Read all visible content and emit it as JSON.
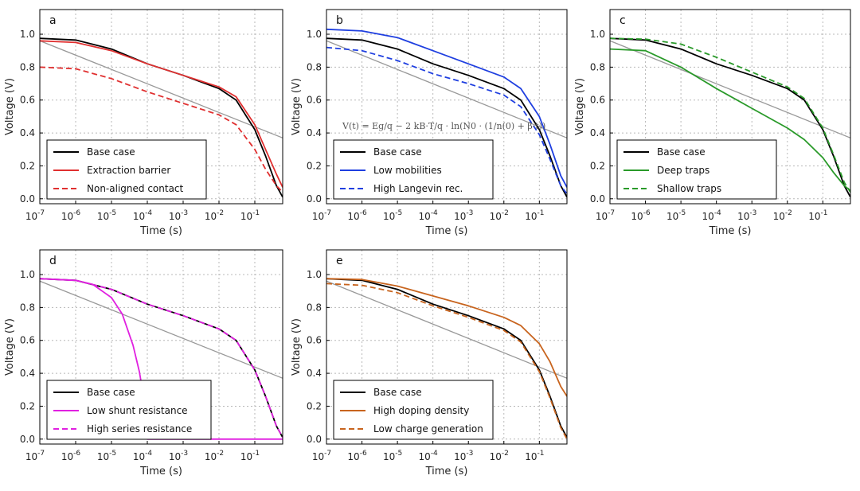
{
  "chart_data": [
    {
      "panel": "a",
      "type": "line",
      "xlabel": "Time (s)",
      "ylabel": "Voltage (V)",
      "xscale": "log",
      "xlim": [
        1e-07,
        0.6
      ],
      "ylim": [
        -0.03,
        1.15
      ],
      "xticks": [
        "10-7",
        "10-6",
        "10-5",
        "10-4",
        "10-3",
        "10-2",
        "10-1"
      ],
      "yticks": [
        "0.0",
        "0.2",
        "0.4",
        "0.6",
        "0.8",
        "1.0"
      ],
      "grid": true,
      "legend_position": "lower-left",
      "reference_line": {
        "x": [
          1e-07,
          0.6
        ],
        "y": [
          0.96,
          0.37
        ],
        "color": "#999999"
      },
      "series": [
        {
          "name": "Base case",
          "color": "#000000",
          "dash": "solid",
          "x": [
            1e-07,
            1e-06,
            1e-05,
            0.0001,
            0.001,
            0.01,
            0.03,
            0.1,
            0.2,
            0.4,
            0.6
          ],
          "y": [
            0.975,
            0.965,
            0.91,
            0.82,
            0.75,
            0.67,
            0.6,
            0.42,
            0.26,
            0.08,
            0.01
          ]
        },
        {
          "name": "Extraction barrier",
          "color": "#e03030",
          "dash": "solid",
          "x": [
            1e-07,
            1e-06,
            1e-05,
            0.0001,
            0.001,
            0.01,
            0.03,
            0.1,
            0.2,
            0.4,
            0.6
          ],
          "y": [
            0.96,
            0.95,
            0.9,
            0.82,
            0.75,
            0.68,
            0.62,
            0.45,
            0.3,
            0.15,
            0.07
          ]
        },
        {
          "name": "Non-aligned contact",
          "color": "#e03030",
          "dash": "dashed",
          "x": [
            1e-07,
            1e-06,
            1e-05,
            0.0001,
            0.001,
            0.01,
            0.03,
            0.1,
            0.2,
            0.4,
            0.6
          ],
          "y": [
            0.8,
            0.79,
            0.73,
            0.65,
            0.58,
            0.51,
            0.45,
            0.3,
            0.18,
            0.08,
            0.04
          ]
        }
      ]
    },
    {
      "panel": "b",
      "type": "line",
      "xlabel": "Time (s)",
      "ylabel": "Voltage (V)",
      "xscale": "log",
      "xlim": [
        1e-07,
        0.6
      ],
      "ylim": [
        -0.03,
        1.15
      ],
      "xticks": [
        "10-7",
        "10-6",
        "10-5",
        "10-4",
        "10-3",
        "10-2",
        "10-1"
      ],
      "yticks": [
        "0.0",
        "0.2",
        "0.4",
        "0.6",
        "0.8",
        "1.0"
      ],
      "grid": true,
      "legend_position": "lower-left",
      "annotation": "V(t) = Eg/q − 2 kB·T/q · ln(N0 · (1/n(0) + β·t))",
      "reference_line": {
        "x": [
          1e-07,
          0.6
        ],
        "y": [
          0.96,
          0.37
        ],
        "color": "#999999"
      },
      "series": [
        {
          "name": "Base case",
          "color": "#000000",
          "dash": "solid",
          "x": [
            1e-07,
            1e-06,
            1e-05,
            0.0001,
            0.001,
            0.01,
            0.03,
            0.1,
            0.2,
            0.4,
            0.6
          ],
          "y": [
            0.975,
            0.965,
            0.91,
            0.82,
            0.75,
            0.67,
            0.6,
            0.42,
            0.26,
            0.08,
            0.01
          ]
        },
        {
          "name": "Low mobilities",
          "color": "#1f3fe0",
          "dash": "solid",
          "x": [
            1e-07,
            1e-06,
            1e-05,
            0.0001,
            0.001,
            0.01,
            0.03,
            0.1,
            0.2,
            0.4,
            0.6
          ],
          "y": [
            1.03,
            1.02,
            0.98,
            0.9,
            0.82,
            0.74,
            0.67,
            0.5,
            0.33,
            0.14,
            0.07
          ]
        },
        {
          "name": "High Langevin rec.",
          "color": "#1f3fe0",
          "dash": "dashed",
          "x": [
            1e-07,
            1e-06,
            1e-05,
            0.0001,
            0.001,
            0.01,
            0.03,
            0.1,
            0.2,
            0.4,
            0.6
          ],
          "y": [
            0.92,
            0.9,
            0.84,
            0.76,
            0.7,
            0.63,
            0.56,
            0.39,
            0.24,
            0.08,
            0.03
          ]
        }
      ]
    },
    {
      "panel": "c",
      "type": "line",
      "xlabel": "Time (s)",
      "ylabel": "Voltage (V)",
      "xscale": "log",
      "xlim": [
        1e-07,
        0.6
      ],
      "ylim": [
        -0.03,
        1.15
      ],
      "xticks": [
        "10-7",
        "10-6",
        "10-5",
        "10-4",
        "10-3",
        "10-2",
        "10-1"
      ],
      "yticks": [
        "0.0",
        "0.2",
        "0.4",
        "0.6",
        "0.8",
        "1.0"
      ],
      "grid": true,
      "legend_position": "lower-left",
      "reference_line": {
        "x": [
          1e-07,
          0.6
        ],
        "y": [
          0.96,
          0.37
        ],
        "color": "#999999"
      },
      "series": [
        {
          "name": "Base case",
          "color": "#000000",
          "dash": "solid",
          "x": [
            1e-07,
            1e-06,
            1e-05,
            0.0001,
            0.001,
            0.01,
            0.03,
            0.1,
            0.2,
            0.4,
            0.6
          ],
          "y": [
            0.975,
            0.965,
            0.91,
            0.82,
            0.75,
            0.67,
            0.6,
            0.42,
            0.26,
            0.08,
            0.01
          ]
        },
        {
          "name": "Deep traps",
          "color": "#2a9a2a",
          "dash": "solid",
          "x": [
            1e-07,
            1e-06,
            1e-05,
            0.0001,
            0.001,
            0.01,
            0.03,
            0.1,
            0.2,
            0.4,
            0.6
          ],
          "y": [
            0.91,
            0.9,
            0.8,
            0.67,
            0.55,
            0.43,
            0.36,
            0.25,
            0.16,
            0.08,
            0.05
          ]
        },
        {
          "name": "Shallow traps",
          "color": "#2a9a2a",
          "dash": "dashed",
          "x": [
            1e-07,
            1e-06,
            1e-05,
            0.0001,
            0.001,
            0.01,
            0.03,
            0.1,
            0.2,
            0.4,
            0.6
          ],
          "y": [
            0.975,
            0.97,
            0.94,
            0.86,
            0.77,
            0.68,
            0.61,
            0.43,
            0.27,
            0.1,
            0.04
          ]
        }
      ]
    },
    {
      "panel": "d",
      "type": "line",
      "xlabel": "Time (s)",
      "ylabel": "Voltage (V)",
      "xscale": "log",
      "xlim": [
        1e-07,
        0.6
      ],
      "ylim": [
        -0.03,
        1.15
      ],
      "xticks": [
        "10-7",
        "10-6",
        "10-5",
        "10-4",
        "10-3",
        "10-2",
        "10-1"
      ],
      "yticks": [
        "0.0",
        "0.2",
        "0.4",
        "0.6",
        "0.8",
        "1.0"
      ],
      "grid": true,
      "legend_position": "lower-left",
      "reference_line": {
        "x": [
          1e-07,
          0.6
        ],
        "y": [
          0.96,
          0.37
        ],
        "color": "#999999"
      },
      "series": [
        {
          "name": "Base case",
          "color": "#000000",
          "dash": "solid",
          "x": [
            1e-07,
            1e-06,
            1e-05,
            0.0001,
            0.001,
            0.01,
            0.03,
            0.1,
            0.2,
            0.4,
            0.6
          ],
          "y": [
            0.975,
            0.965,
            0.91,
            0.82,
            0.75,
            0.67,
            0.6,
            0.42,
            0.26,
            0.08,
            0.01
          ]
        },
        {
          "name": "Low shunt resistance",
          "color": "#e020e0",
          "dash": "solid",
          "x": [
            1e-07,
            1e-06,
            3e-06,
            1e-05,
            2e-05,
            4e-05,
            6e-05,
            8e-05,
            0.0001,
            0.6
          ],
          "y": [
            0.975,
            0.965,
            0.94,
            0.86,
            0.76,
            0.57,
            0.41,
            0.25,
            0.0,
            0.0
          ]
        },
        {
          "name": "High series resistance",
          "color": "#e020e0",
          "dash": "dashed",
          "x": [
            1e-07,
            1e-06,
            1e-05,
            0.0001,
            0.001,
            0.01,
            0.03,
            0.1,
            0.2,
            0.4,
            0.6
          ],
          "y": [
            0.975,
            0.965,
            0.91,
            0.82,
            0.75,
            0.67,
            0.6,
            0.42,
            0.26,
            0.08,
            0.01
          ]
        }
      ]
    },
    {
      "panel": "e",
      "type": "line",
      "xlabel": "Time (s)",
      "ylabel": "Voltage (V)",
      "xscale": "log",
      "xlim": [
        1e-07,
        0.6
      ],
      "ylim": [
        -0.03,
        1.15
      ],
      "xticks": [
        "10-7",
        "10-6",
        "10-5",
        "10-4",
        "10-3",
        "10-2",
        "10-1"
      ],
      "yticks": [
        "0.0",
        "0.2",
        "0.4",
        "0.6",
        "0.8",
        "1.0"
      ],
      "grid": true,
      "legend_position": "lower-left",
      "reference_line": {
        "x": [
          1e-07,
          0.6
        ],
        "y": [
          0.96,
          0.37
        ],
        "color": "#999999"
      },
      "series": [
        {
          "name": "Base case",
          "color": "#000000",
          "dash": "solid",
          "x": [
            1e-07,
            1e-06,
            1e-05,
            0.0001,
            0.001,
            0.01,
            0.03,
            0.1,
            0.2,
            0.4,
            0.6
          ],
          "y": [
            0.975,
            0.965,
            0.91,
            0.82,
            0.75,
            0.67,
            0.6,
            0.42,
            0.26,
            0.08,
            0.01
          ]
        },
        {
          "name": "High doping density",
          "color": "#c8641e",
          "dash": "solid",
          "x": [
            1e-07,
            1e-06,
            1e-05,
            0.0001,
            0.001,
            0.01,
            0.03,
            0.1,
            0.2,
            0.4,
            0.6
          ],
          "y": [
            0.975,
            0.97,
            0.93,
            0.87,
            0.81,
            0.74,
            0.69,
            0.58,
            0.47,
            0.32,
            0.26
          ]
        },
        {
          "name": "Low charge generation",
          "color": "#c8641e",
          "dash": "dashed",
          "x": [
            1e-07,
            1e-06,
            1e-05,
            0.0001,
            0.001,
            0.01,
            0.03,
            0.1,
            0.2,
            0.4,
            0.6
          ],
          "y": [
            0.945,
            0.935,
            0.89,
            0.81,
            0.74,
            0.66,
            0.59,
            0.41,
            0.25,
            0.07,
            0.0
          ]
        }
      ]
    }
  ]
}
